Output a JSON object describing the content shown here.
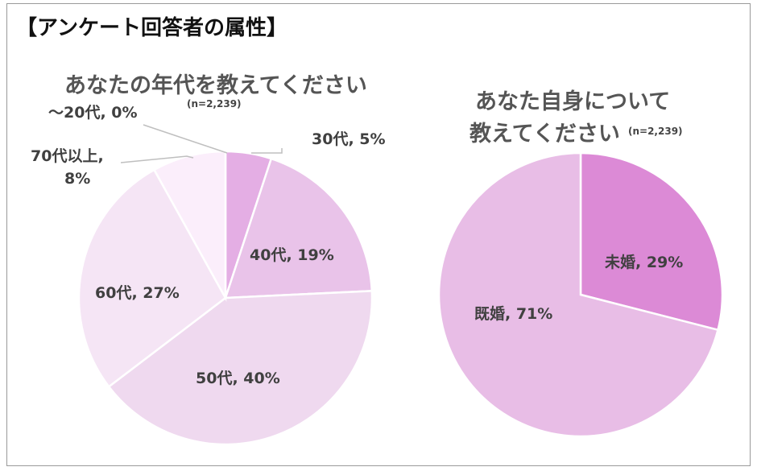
{
  "page_title": "【アンケート回答者の属性】",
  "chart_data": [
    {
      "type": "pie",
      "title": "あなたの年代を教えてください",
      "note": "(n=2,239)",
      "slices": [
        {
          "label": "30代",
          "display": "30代, 5%",
          "value": 5,
          "color": "#e4aee4"
        },
        {
          "label": "40代",
          "display": "40代, 19%",
          "value": 19,
          "color": "#e9c3e9"
        },
        {
          "label": "50代",
          "display": "50代, 40%",
          "value": 40,
          "color": "#efd9ef"
        },
        {
          "label": "60代",
          "display": "60代, 27%",
          "value": 27,
          "color": "#f5e5f5"
        },
        {
          "label": "70代以上",
          "display_lines": [
            "70代以上,",
            "8%"
          ],
          "value": 8,
          "color": "#fbeefb"
        },
        {
          "label": "〜20代",
          "display": "〜20代, 0%",
          "value": 0,
          "color": "#d9a0d9"
        }
      ]
    },
    {
      "type": "pie",
      "title_lines": [
        "あなた自身について",
        "教えてください"
      ],
      "note": "(n=2,239)",
      "slices": [
        {
          "label": "未婚",
          "display": "未婚, 29%",
          "value": 29,
          "color": "#dc8ad6"
        },
        {
          "label": "既婚",
          "display": "既婚, 71%",
          "value": 71,
          "color": "#e8bde6"
        }
      ]
    }
  ]
}
